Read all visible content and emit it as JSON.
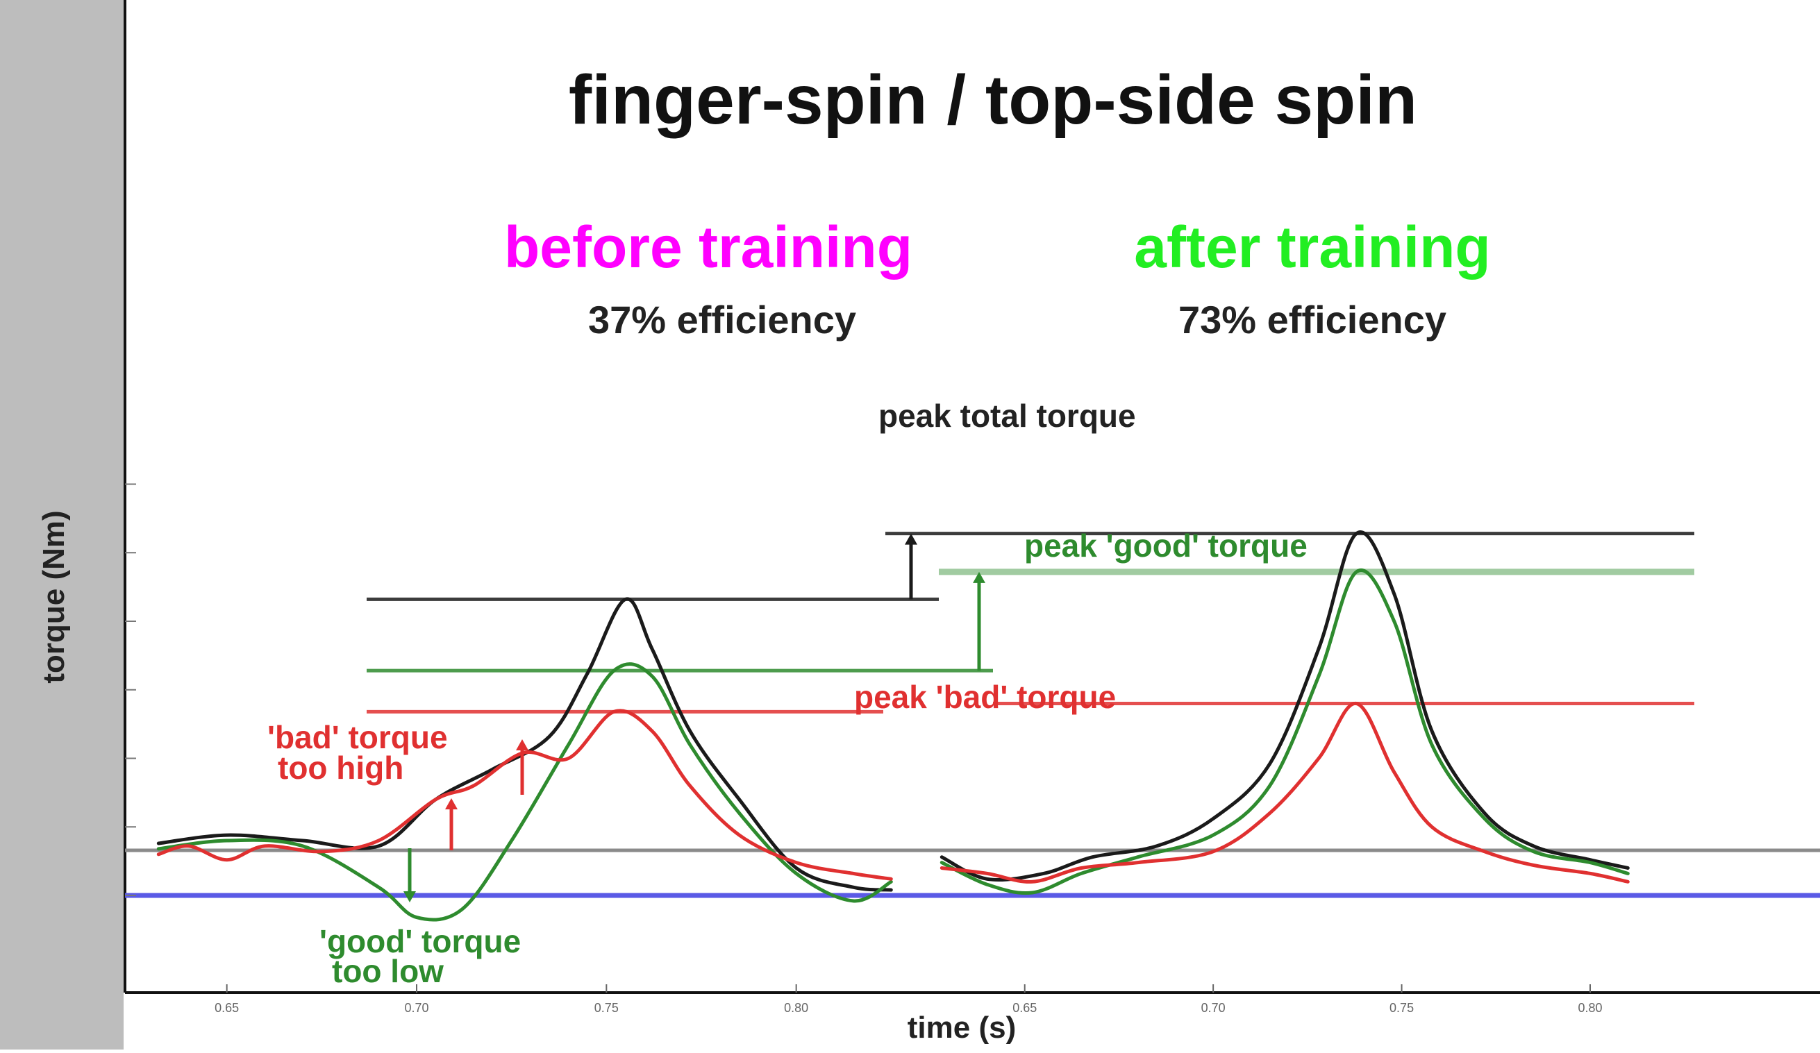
{
  "chart_data": {
    "type": "line",
    "title": "finger-spin  /  top-side spin",
    "xlabel": "time (s)",
    "ylabel": "torque (Nm)",
    "panels": [
      {
        "heading": "before training",
        "heading_color": "#ff00ff",
        "efficiency": "37% efficiency",
        "xlim": [
          0.625,
          0.835
        ],
        "x_ticks": [
          "0.65",
          "0.70",
          "0.75",
          "0.80"
        ],
        "series": [
          {
            "role": "total",
            "color": "#1a1a1a",
            "points": [
              [
                0.632,
                0.019
              ],
              [
                0.65,
                0.022
              ],
              [
                0.67,
                0.02
              ],
              [
                0.69,
                0.018
              ],
              [
                0.705,
                0.035
              ],
              [
                0.72,
                0.046
              ],
              [
                0.735,
                0.058
              ],
              [
                0.745,
                0.081
              ],
              [
                0.755,
                0.108
              ],
              [
                0.762,
                0.09
              ],
              [
                0.772,
                0.06
              ],
              [
                0.785,
                0.035
              ],
              [
                0.8,
                0.01
              ],
              [
                0.815,
                0.003
              ],
              [
                0.825,
                0.002
              ]
            ]
          },
          {
            "role": "good",
            "color": "#2e8b2e",
            "points": [
              [
                0.632,
                0.017
              ],
              [
                0.65,
                0.02
              ],
              [
                0.67,
                0.018
              ],
              [
                0.69,
                0.003
              ],
              [
                0.7,
                -0.008
              ],
              [
                0.712,
                -0.005
              ],
              [
                0.725,
                0.02
              ],
              [
                0.74,
                0.055
              ],
              [
                0.752,
                0.082
              ],
              [
                0.762,
                0.08
              ],
              [
                0.772,
                0.055
              ],
              [
                0.785,
                0.03
              ],
              [
                0.8,
                0.008
              ],
              [
                0.815,
                -0.002
              ],
              [
                0.825,
                0.005
              ]
            ]
          },
          {
            "role": "bad",
            "color": "#e03030",
            "points": [
              [
                0.632,
                0.015
              ],
              [
                0.64,
                0.018
              ],
              [
                0.65,
                0.013
              ],
              [
                0.66,
                0.018
              ],
              [
                0.675,
                0.016
              ],
              [
                0.69,
                0.02
              ],
              [
                0.705,
                0.035
              ],
              [
                0.715,
                0.04
              ],
              [
                0.728,
                0.052
              ],
              [
                0.74,
                0.05
              ],
              [
                0.752,
                0.067
              ],
              [
                0.762,
                0.06
              ],
              [
                0.772,
                0.04
              ],
              [
                0.785,
                0.022
              ],
              [
                0.8,
                0.012
              ],
              [
                0.815,
                0.008
              ],
              [
                0.825,
                0.006
              ]
            ]
          }
        ]
      },
      {
        "heading": "after training",
        "heading_color": "#22ee22",
        "efficiency": "73% efficiency",
        "xlim": [
          0.625,
          0.835
        ],
        "x_ticks": [
          "0.65",
          "0.70",
          "0.75",
          "0.80"
        ],
        "series": [
          {
            "role": "total",
            "color": "#1a1a1a",
            "points": [
              [
                0.628,
                0.014
              ],
              [
                0.64,
                0.006
              ],
              [
                0.655,
                0.008
              ],
              [
                0.668,
                0.014
              ],
              [
                0.685,
                0.018
              ],
              [
                0.7,
                0.028
              ],
              [
                0.715,
                0.048
              ],
              [
                0.728,
                0.09
              ],
              [
                0.738,
                0.132
              ],
              [
                0.748,
                0.11
              ],
              [
                0.758,
                0.06
              ],
              [
                0.772,
                0.03
              ],
              [
                0.785,
                0.018
              ],
              [
                0.8,
                0.013
              ],
              [
                0.81,
                0.01
              ]
            ]
          },
          {
            "role": "good",
            "color": "#2e8b2e",
            "points": [
              [
                0.628,
                0.012
              ],
              [
                0.64,
                0.004
              ],
              [
                0.652,
                0.001
              ],
              [
                0.665,
                0.008
              ],
              [
                0.68,
                0.014
              ],
              [
                0.7,
                0.022
              ],
              [
                0.715,
                0.04
              ],
              [
                0.728,
                0.08
              ],
              [
                0.738,
                0.118
              ],
              [
                0.748,
                0.1
              ],
              [
                0.758,
                0.055
              ],
              [
                0.772,
                0.028
              ],
              [
                0.785,
                0.016
              ],
              [
                0.8,
                0.012
              ],
              [
                0.81,
                0.008
              ]
            ]
          },
          {
            "role": "bad",
            "color": "#e03030",
            "points": [
              [
                0.628,
                0.01
              ],
              [
                0.64,
                0.008
              ],
              [
                0.652,
                0.005
              ],
              [
                0.665,
                0.01
              ],
              [
                0.68,
                0.012
              ],
              [
                0.7,
                0.016
              ],
              [
                0.715,
                0.03
              ],
              [
                0.728,
                0.05
              ],
              [
                0.738,
                0.07
              ],
              [
                0.748,
                0.045
              ],
              [
                0.758,
                0.025
              ],
              [
                0.772,
                0.016
              ],
              [
                0.785,
                0.011
              ],
              [
                0.8,
                0.008
              ],
              [
                0.81,
                0.005
              ]
            ]
          }
        ]
      }
    ],
    "annotations": {
      "peak_total": "peak total torque",
      "peak_good": "peak 'good' torque",
      "peak_bad": "peak 'bad' torque",
      "bad_high_line1": "'bad' torque",
      "bad_high_line2": "too high",
      "good_low_line1": "'good' torque",
      "good_low_line2": "too low"
    },
    "colors": {
      "total": "#1a1a1a",
      "good": "#2e8b2e",
      "bad": "#e03030",
      "zero_line": "#5a5ae6",
      "baseline": "#8a8a8a"
    }
  }
}
